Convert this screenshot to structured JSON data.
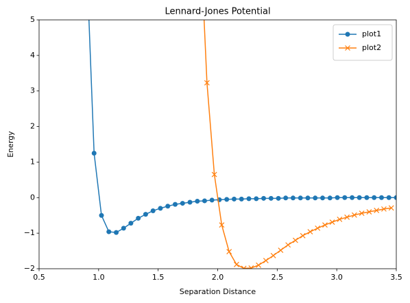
{
  "chart_data": {
    "type": "line",
    "title": "Lennard-Jones Potential",
    "xlabel": "Separation Distance",
    "ylabel": "Energy",
    "xlim": [
      0.5,
      3.5
    ],
    "ylim": [
      -2,
      5
    ],
    "xticks": [
      0.5,
      {
        "value": 1,
        "label": "1.0"
      },
      1.5,
      {
        "value": 2,
        "label": "2.0"
      },
      2.5,
      {
        "value": 3,
        "label": "3.0"
      },
      3.5
    ],
    "yticks": [
      {
        "value": -2,
        "label": "−2"
      },
      {
        "value": -1,
        "label": "−1"
      },
      0,
      1,
      2,
      3,
      4,
      5
    ],
    "legend": "upper right",
    "series": [
      {
        "name": "plot1",
        "color": "#1f77b4",
        "marker": "o",
        "x": [
          0.9,
          0.962,
          1.024,
          1.086,
          1.148,
          1.21,
          1.271,
          1.333,
          1.395,
          1.457,
          1.519,
          1.581,
          1.643,
          1.705,
          1.767,
          1.829,
          1.89,
          1.952,
          2.014,
          2.076,
          2.138,
          2.2,
          2.262,
          2.324,
          2.386,
          2.448,
          2.51,
          2.571,
          2.633,
          2.695,
          2.757,
          2.819,
          2.881,
          2.943,
          3.005,
          3.067,
          3.129,
          3.19,
          3.252,
          3.314,
          3.376,
          3.438,
          3.5
        ],
        "values": [
          6.64,
          1.25,
          -0.5,
          -0.96,
          -0.98,
          -0.86,
          -0.72,
          -0.58,
          -0.47,
          -0.37,
          -0.3,
          -0.24,
          -0.19,
          -0.16,
          -0.13,
          -0.1,
          -0.09,
          -0.07,
          -0.06,
          -0.05,
          -0.04,
          -0.04,
          -0.03,
          -0.03,
          -0.02,
          -0.02,
          -0.02,
          -0.01,
          -0.01,
          -0.01,
          -0.01,
          -0.01,
          -0.01,
          -0.01,
          0,
          0,
          0,
          0,
          0,
          0,
          0,
          0,
          0
        ]
      },
      {
        "name": "plot2",
        "color": "#ff7f0e",
        "marker": "x",
        "x": [
          1.849,
          1.91,
          1.972,
          2.034,
          2.096,
          2.158,
          2.22,
          2.281,
          2.343,
          2.405,
          2.467,
          2.529,
          2.591,
          2.653,
          2.715,
          2.777,
          2.839,
          2.901,
          2.962,
          3.024,
          3.086,
          3.148,
          3.21,
          3.272,
          3.334,
          3.396,
          3.458
        ],
        "values": [
          7.71,
          3.23,
          0.65,
          -0.77,
          -1.52,
          -1.88,
          -1.99,
          -1.98,
          -1.9,
          -1.77,
          -1.63,
          -1.48,
          -1.33,
          -1.2,
          -1.07,
          -0.96,
          -0.86,
          -0.77,
          -0.69,
          -0.61,
          -0.55,
          -0.49,
          -0.44,
          -0.4,
          -0.36,
          -0.32,
          -0.29
        ]
      }
    ]
  }
}
